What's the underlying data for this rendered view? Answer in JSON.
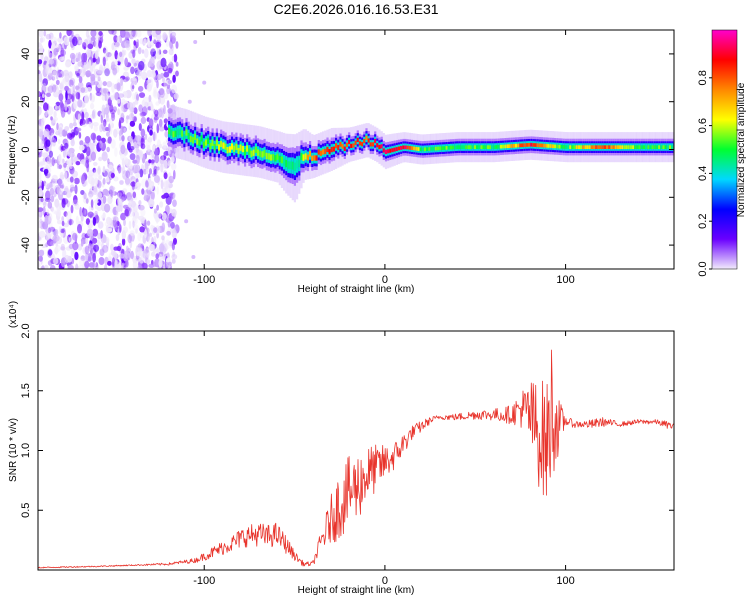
{
  "title": "C2E6.2026.016.16.53.E31",
  "chart_data": [
    {
      "type": "heatmap",
      "panel": "spectrogram",
      "xlabel": "Height of straight line (km)",
      "ylabel": "Frequency (Hz)",
      "xlim": [
        -192,
        160
      ],
      "ylim": [
        -50,
        50
      ],
      "xticks": [
        -100,
        0,
        100
      ],
      "xtick_labels": [
        "-100",
        "0",
        "100"
      ],
      "yticks": [
        -40,
        -20,
        0,
        20,
        40
      ],
      "ytick_labels": [
        "-40",
        "-20",
        "0",
        "20",
        "40"
      ],
      "colorbar": {
        "label": "Normalized spectral amplitude",
        "range": [
          0,
          1
        ],
        "ticks": [
          0.0,
          0.2,
          0.4,
          0.6,
          0.8
        ],
        "tick_labels": [
          "0.0",
          "0.2",
          "0.4",
          "0.6",
          "0.8"
        ],
        "colormap": [
          "#f2ecfb",
          "#6a00ff",
          "#0000ff",
          "#00d8ff",
          "#00ff30",
          "#ffff00",
          "#ff8800",
          "#ff0000",
          "#ff00cc"
        ]
      },
      "ridge": {
        "x": [
          -120,
          -110,
          -100,
          -90,
          -80,
          -70,
          -60,
          -55,
          -50,
          -45,
          -40,
          -30,
          -20,
          -10,
          -5,
          0,
          10,
          20,
          40,
          60,
          80,
          100,
          120,
          140,
          160
        ],
        "y": [
          8,
          6,
          3,
          1,
          0,
          -1,
          -3,
          -6,
          -8,
          -2,
          -3,
          0,
          2,
          4,
          2,
          -1,
          1,
          0,
          1,
          1,
          2,
          1,
          1,
          1,
          1
        ],
        "amplitude": [
          0.5,
          0.5,
          0.55,
          0.6,
          0.55,
          0.55,
          0.5,
          0.45,
          0.4,
          0.65,
          0.8,
          0.8,
          0.85,
          0.8,
          0.9,
          0.9,
          0.9,
          0.5,
          0.5,
          0.5,
          0.85,
          0.5,
          0.85,
          0.5,
          0.5
        ],
        "band_halfwidth_hz": [
          6,
          6,
          6,
          6,
          6,
          6,
          6,
          7,
          8,
          6,
          5,
          5,
          4,
          4,
          4,
          4,
          3.5,
          3.5,
          3.5,
          3.5,
          3.5,
          3.5,
          3.5,
          3.5,
          3.5
        ]
      },
      "noise_region": {
        "x_range": [
          -192,
          -115
        ],
        "y_range": [
          -50,
          50
        ],
        "amplitude_range": [
          0.0,
          0.15
        ],
        "extra_points": [
          [
            -110,
            -30
          ],
          [
            -106,
            -45
          ],
          [
            -108,
            20
          ],
          [
            -105,
            45
          ],
          [
            -100,
            28
          ]
        ]
      }
    },
    {
      "type": "line",
      "panel": "snr",
      "xlabel": "Height of straight line (km)",
      "ylabel": "SNR (10 * v/v)",
      "multiplier_label": "(x10⁴)",
      "xlim": [
        -192,
        160
      ],
      "ylim": [
        0,
        2.0
      ],
      "xticks": [
        -100,
        0,
        100
      ],
      "xtick_labels": [
        "-100",
        "0",
        "100"
      ],
      "yticks": [
        0.5,
        1.0,
        1.5,
        2.0
      ],
      "ytick_labels": [
        "0.5",
        "1.0",
        "1.5",
        "2.0"
      ],
      "color": "#e8342c",
      "series": [
        {
          "name": "SNR",
          "x": [
            -192,
            -160,
            -140,
            -120,
            -105,
            -95,
            -85,
            -78,
            -70,
            -65,
            -60,
            -55,
            -50,
            -45,
            -40,
            -35,
            -30,
            -25,
            -20,
            -15,
            -10,
            -5,
            0,
            5,
            10,
            15,
            20,
            25,
            30,
            40,
            50,
            60,
            70,
            75,
            80,
            85,
            90,
            92,
            94,
            96,
            100,
            105,
            110,
            115,
            120,
            130,
            140,
            150,
            155,
            160
          ],
          "y": [
            0.02,
            0.03,
            0.04,
            0.05,
            0.08,
            0.15,
            0.22,
            0.28,
            0.3,
            0.28,
            0.3,
            0.22,
            0.12,
            0.05,
            0.05,
            0.25,
            0.42,
            0.55,
            0.65,
            0.7,
            0.8,
            0.85,
            0.9,
            0.95,
            1.05,
            1.15,
            1.2,
            1.25,
            1.28,
            1.28,
            1.3,
            1.3,
            1.3,
            1.35,
            1.3,
            1.15,
            1.05,
            1.35,
            1.25,
            1.2,
            1.25,
            1.22,
            1.22,
            1.22,
            1.24,
            1.22,
            1.24,
            1.24,
            1.22,
            1.2
          ],
          "noise": [
            0.005,
            0.005,
            0.005,
            0.01,
            0.02,
            0.05,
            0.07,
            0.09,
            0.1,
            0.1,
            0.1,
            0.08,
            0.04,
            0.02,
            0.02,
            0.1,
            0.2,
            0.3,
            0.3,
            0.3,
            0.25,
            0.2,
            0.15,
            0.12,
            0.1,
            0.06,
            0.05,
            0.03,
            0.02,
            0.03,
            0.04,
            0.05,
            0.08,
            0.15,
            0.3,
            0.45,
            0.55,
            0.65,
            0.4,
            0.25,
            0.04,
            0.03,
            0.03,
            0.04,
            0.04,
            0.02,
            0.02,
            0.02,
            0.03,
            0.03
          ]
        }
      ]
    }
  ]
}
